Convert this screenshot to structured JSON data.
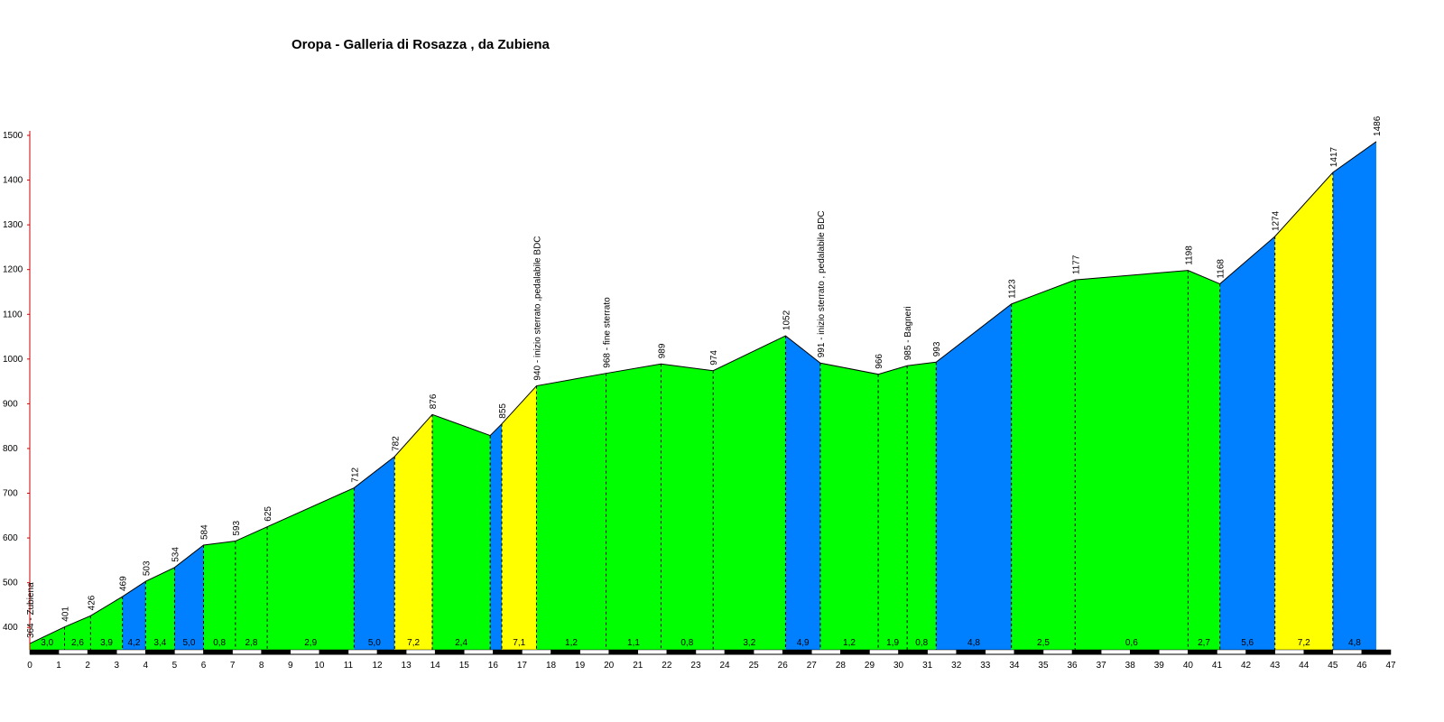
{
  "chart_data": {
    "type": "area",
    "title": "Oropa - Galleria di Rosazza , da Zubiena",
    "xlabel": "",
    "ylabel": "",
    "xlim": [
      0,
      47
    ],
    "ylim": [
      350,
      1500
    ],
    "x_ticks": [
      0,
      1,
      2,
      3,
      4,
      5,
      6,
      7,
      8,
      9,
      10,
      11,
      12,
      13,
      14,
      15,
      16,
      17,
      18,
      19,
      20,
      21,
      22,
      23,
      24,
      25,
      26,
      27,
      28,
      29,
      30,
      31,
      32,
      33,
      34,
      35,
      36,
      37,
      38,
      39,
      40,
      41,
      42,
      43,
      44,
      45,
      46,
      47
    ],
    "y_ticks": [
      400,
      500,
      600,
      700,
      800,
      900,
      1000,
      1100,
      1200,
      1300,
      1400,
      1500
    ],
    "colors": {
      "green": "#00ff00",
      "blue": "#0080ff",
      "yellow": "#ffff00",
      "axis_red": "#cc0000"
    },
    "points": [
      {
        "x": 0.0,
        "y": 364,
        "label": "364 - Zubiena"
      },
      {
        "x": 1.2,
        "y": 401,
        "label": "401"
      },
      {
        "x": 2.1,
        "y": 426,
        "label": "426"
      },
      {
        "x": 3.2,
        "y": 469,
        "label": "469"
      },
      {
        "x": 4.0,
        "y": 503,
        "label": "503"
      },
      {
        "x": 5.0,
        "y": 534,
        "label": "534"
      },
      {
        "x": 6.0,
        "y": 584,
        "label": "584"
      },
      {
        "x": 7.1,
        "y": 593,
        "label": "593"
      },
      {
        "x": 8.2,
        "y": 625,
        "label": "625"
      },
      {
        "x": 11.2,
        "y": 712,
        "label": "712"
      },
      {
        "x": 12.6,
        "y": 782,
        "label": "782"
      },
      {
        "x": 13.9,
        "y": 876,
        "label": "876"
      },
      {
        "x": 15.9,
        "y": 829,
        "label": ""
      },
      {
        "x": 16.3,
        "y": 855,
        "label": "855"
      },
      {
        "x": 17.5,
        "y": 940,
        "label": "940 - inizio sterrato ,pedalabile BDC"
      },
      {
        "x": 19.9,
        "y": 968,
        "label": "968 - fine sterrato"
      },
      {
        "x": 21.8,
        "y": 989,
        "label": "989"
      },
      {
        "x": 23.6,
        "y": 974,
        "label": "974"
      },
      {
        "x": 26.1,
        "y": 1052,
        "label": "1052"
      },
      {
        "x": 27.3,
        "y": 991,
        "label": "991 - inizio sterrato , pedalabile BDC"
      },
      {
        "x": 29.3,
        "y": 966,
        "label": "966"
      },
      {
        "x": 30.3,
        "y": 985,
        "label": "985 - Bagneri"
      },
      {
        "x": 31.3,
        "y": 993,
        "label": "993"
      },
      {
        "x": 33.9,
        "y": 1123,
        "label": "1123"
      },
      {
        "x": 36.1,
        "y": 1177,
        "label": "1177"
      },
      {
        "x": 40.0,
        "y": 1198,
        "label": "1198"
      },
      {
        "x": 41.1,
        "y": 1168,
        "label": "1168"
      },
      {
        "x": 43.0,
        "y": 1274,
        "label": "1274"
      },
      {
        "x": 45.0,
        "y": 1417,
        "label": "1417"
      },
      {
        "x": 46.5,
        "y": 1486,
        "label": "1486"
      }
    ],
    "segments": [
      {
        "grade": "3,0",
        "color": "green"
      },
      {
        "grade": "2,6",
        "color": "green"
      },
      {
        "grade": "3,9",
        "color": "green"
      },
      {
        "grade": "4,2",
        "color": "blue"
      },
      {
        "grade": "3,4",
        "color": "green"
      },
      {
        "grade": "5,0",
        "color": "blue"
      },
      {
        "grade": "0,8",
        "color": "green"
      },
      {
        "grade": "2,8",
        "color": "green"
      },
      {
        "grade": "2,9",
        "color": "green"
      },
      {
        "grade": "5,0",
        "color": "blue"
      },
      {
        "grade": "7,2",
        "color": "yellow"
      },
      {
        "grade": "2,4",
        "color": "green"
      },
      {
        "grade": "",
        "color": "blue"
      },
      {
        "grade": "7,1",
        "color": "yellow"
      },
      {
        "grade": "1,2",
        "color": "green"
      },
      {
        "grade": "1,1",
        "color": "green"
      },
      {
        "grade": "0,8",
        "color": "green"
      },
      {
        "grade": "3,2",
        "color": "green"
      },
      {
        "grade": "4,9",
        "color": "blue"
      },
      {
        "grade": "1,2",
        "color": "green"
      },
      {
        "grade": "1,9",
        "color": "green"
      },
      {
        "grade": "0,8",
        "color": "green"
      },
      {
        "grade": "4,8",
        "color": "blue"
      },
      {
        "grade": "2,5",
        "color": "green"
      },
      {
        "grade": "0,6",
        "color": "green"
      },
      {
        "grade": "2,7",
        "color": "green"
      },
      {
        "grade": "5,6",
        "color": "blue"
      },
      {
        "grade": "7,2",
        "color": "yellow"
      },
      {
        "grade": "4,8",
        "color": "blue"
      }
    ]
  }
}
